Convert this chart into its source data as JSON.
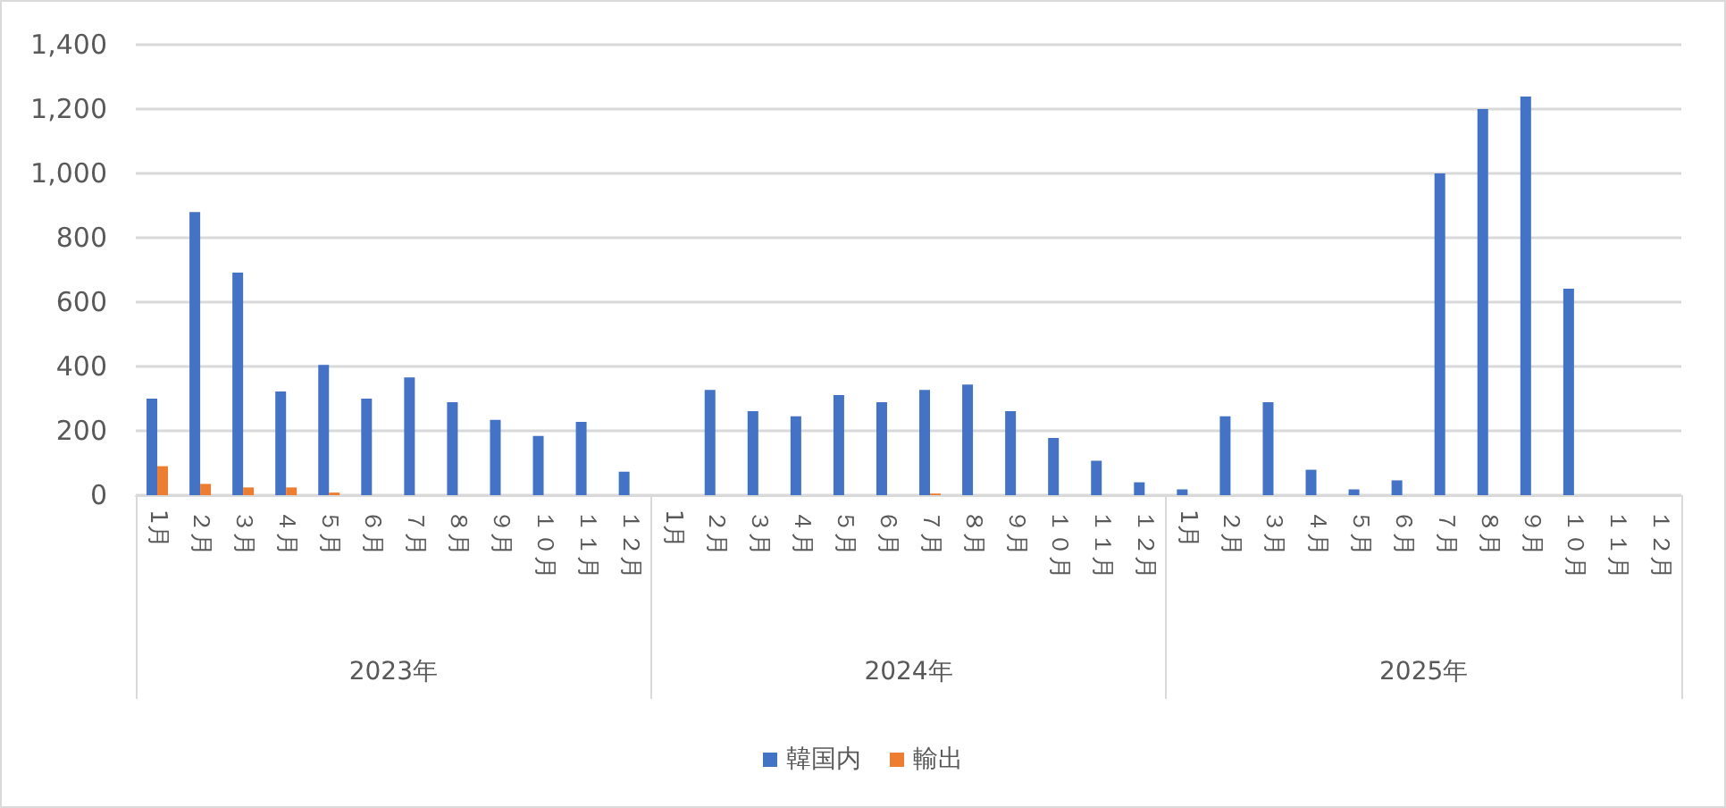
{
  "chart_data": {
    "type": "bar",
    "categories": [
      "1月",
      "２月",
      "３月",
      "４月",
      "５月",
      "６月",
      "７月",
      "８月",
      "９月",
      "１０月",
      "１１月",
      "１２月",
      "1月",
      "２月",
      "３月",
      "４月",
      "５月",
      "６月",
      "７月",
      "８月",
      "９月",
      "１０月",
      "１１月",
      "１２月",
      "1月",
      "２月",
      "３月",
      "４月",
      "５月",
      "６月",
      "７月",
      "８月",
      "９月",
      "１０月",
      "１１月",
      "１２月"
    ],
    "series": [
      {
        "name": "韓国内",
        "color": "#4472c4",
        "values": [
          300,
          880,
          692,
          322,
          405,
          300,
          366,
          289,
          234,
          184,
          228,
          73,
          0,
          327,
          261,
          245,
          311,
          289,
          327,
          344,
          261,
          178,
          107,
          40,
          18,
          245,
          289,
          79,
          18,
          46,
          1000,
          1200,
          1239,
          642,
          null,
          null
        ]
      },
      {
        "name": "輸出",
        "color": "#ed7d31",
        "values": [
          90,
          35,
          24,
          24,
          8,
          0,
          0,
          0,
          0,
          0,
          0,
          0,
          0,
          0,
          0,
          0,
          0,
          0,
          5,
          0,
          0,
          0,
          0,
          0,
          0,
          0,
          0,
          0,
          0,
          0,
          0,
          0,
          0,
          0,
          null,
          null
        ]
      }
    ],
    "annotations": [
      "2023年",
      "2024年",
      "2025年"
    ],
    "ylim": [
      0,
      1400
    ],
    "yticks": [
      0,
      200,
      400,
      600,
      800,
      {
        "value": 1000,
        "label": "1,000"
      },
      {
        "value": 1200,
        "label": "1,200"
      },
      {
        "value": 1400,
        "label": "1,400"
      }
    ],
    "grid": "y",
    "legend": "bottom"
  }
}
